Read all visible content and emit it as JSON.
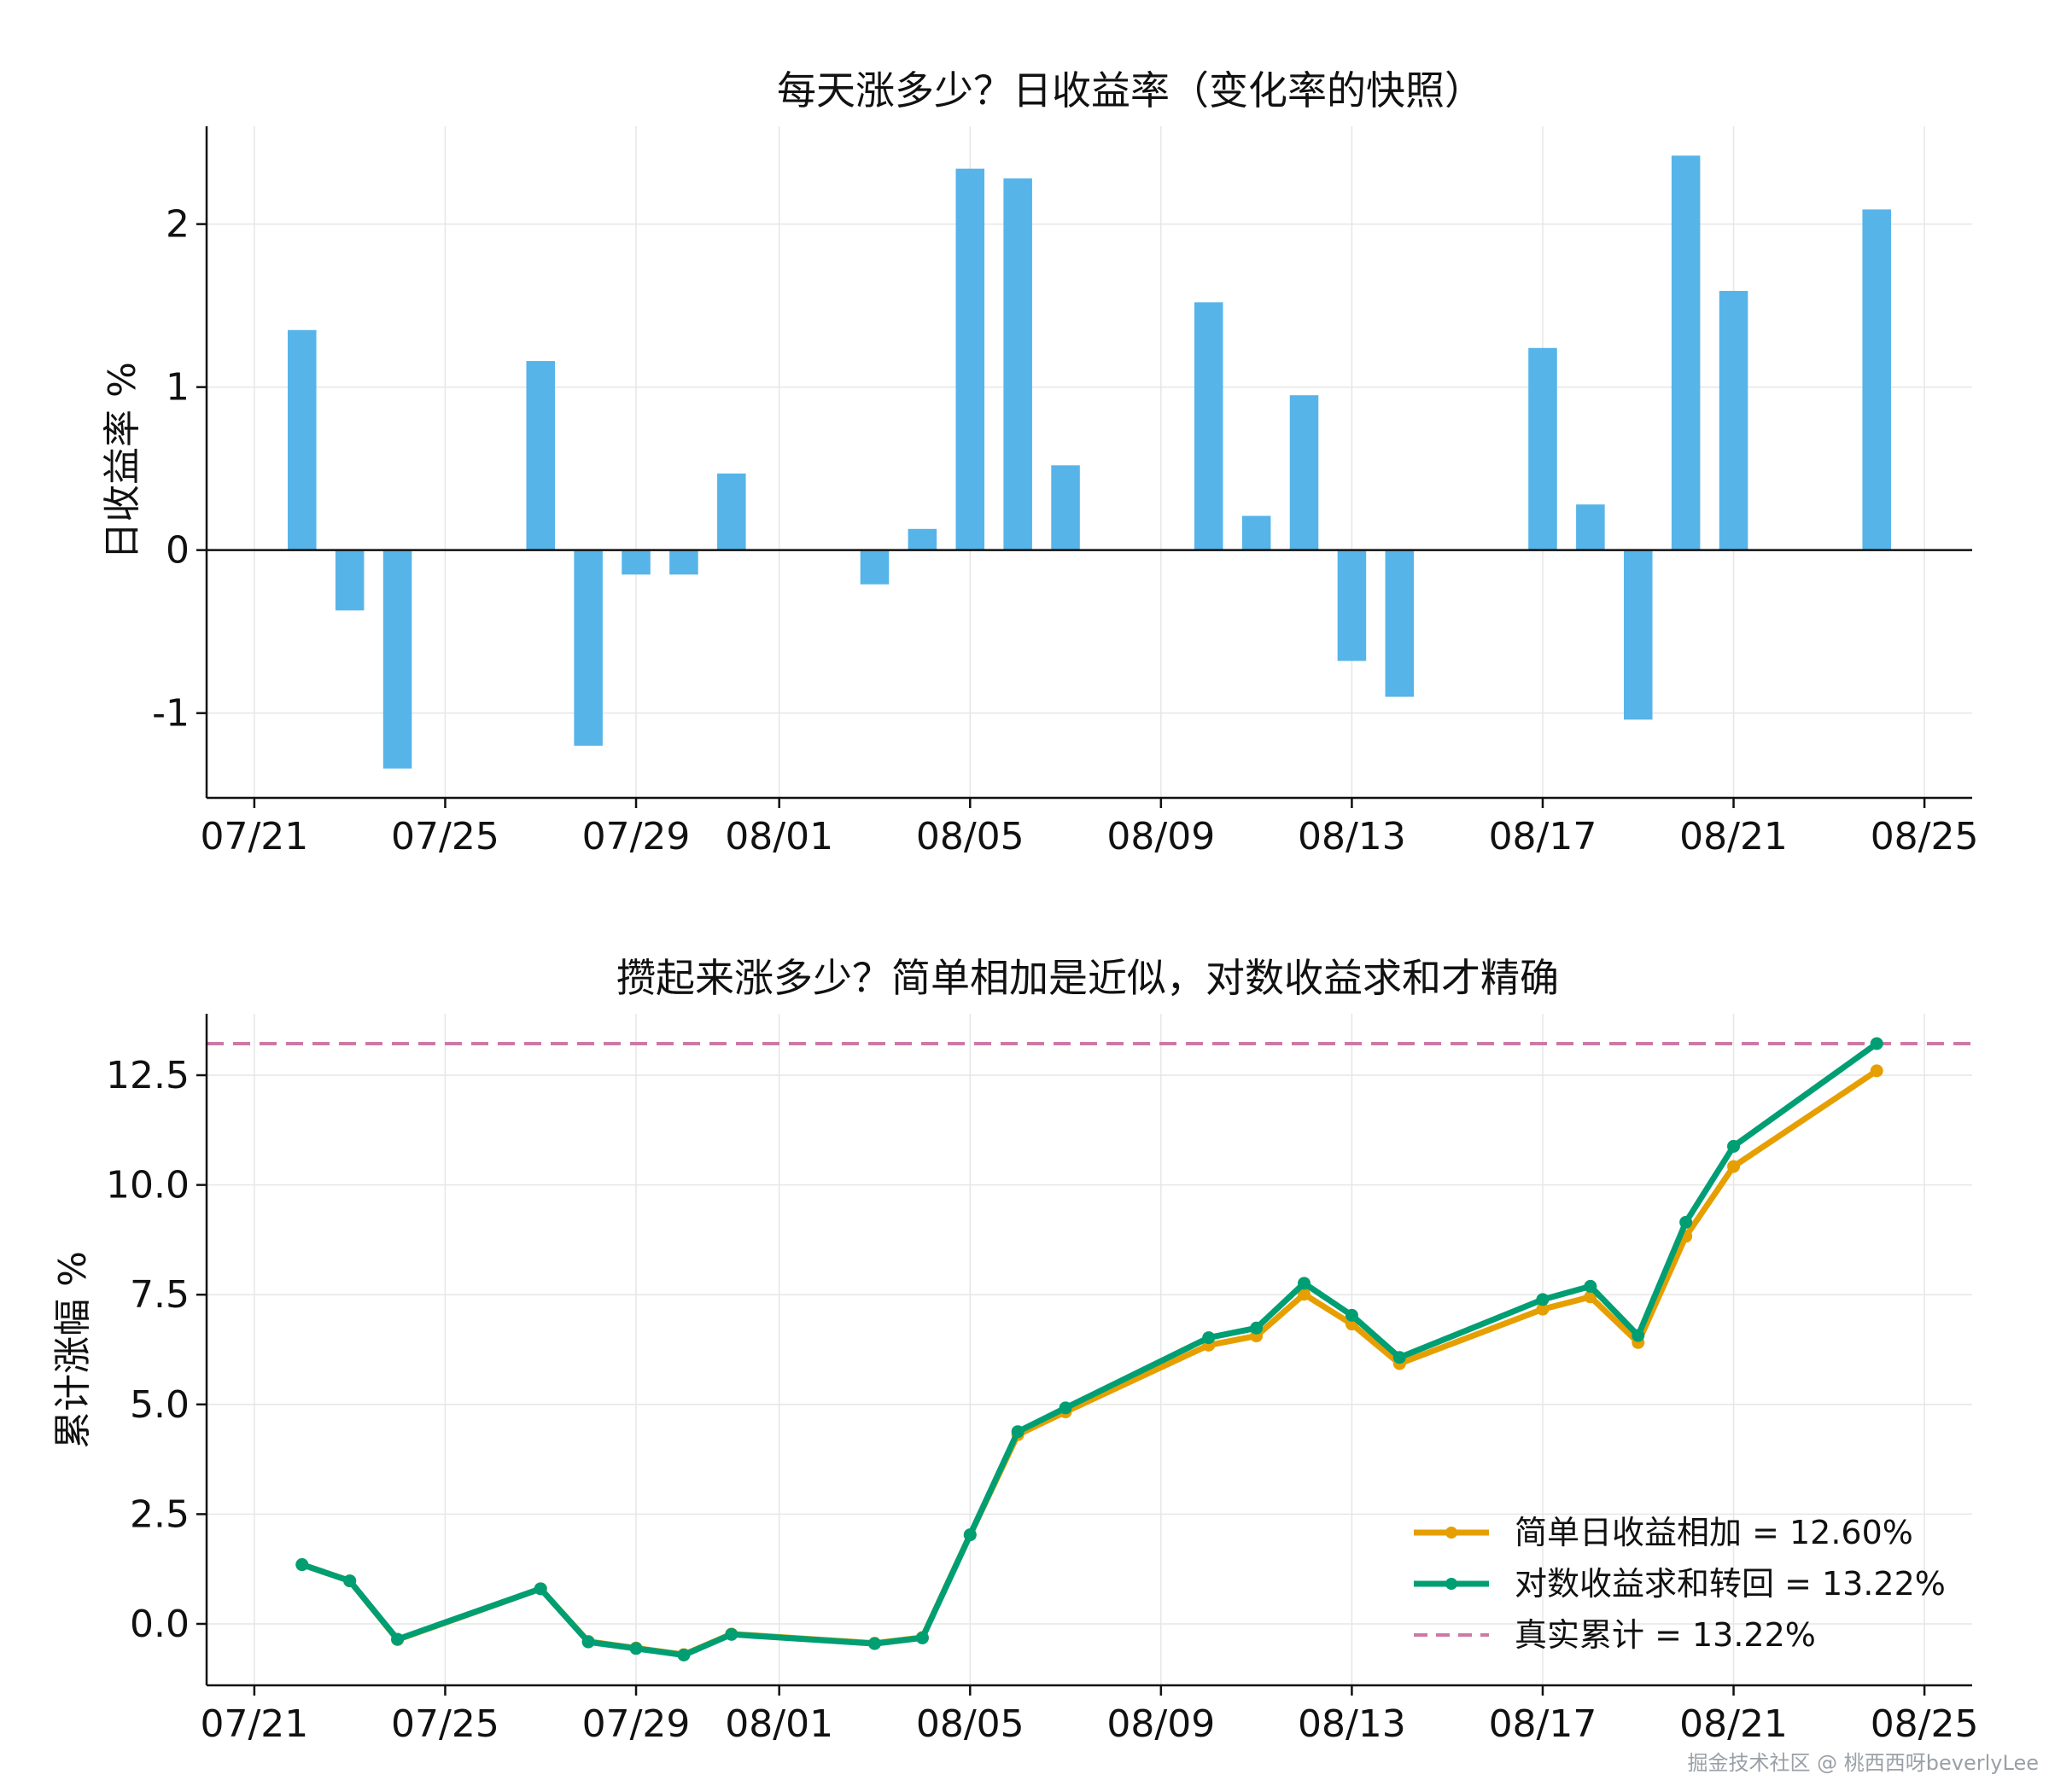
{
  "watermark": "掘金技术社区 @ 桃西西呀beverlyLee",
  "chart_data": [
    {
      "type": "bar",
      "title": "每天涨多少？日收益率（变化率的快照）",
      "xlabel": "",
      "ylabel": "日收益率 %",
      "ylim": [
        -1.52,
        2.6
      ],
      "xlim": [
        "2025-07-20",
        "2025-08-26"
      ],
      "x_ticks": [
        "07/21",
        "07/25",
        "07/29",
        "08/01",
        "08/05",
        "08/09",
        "08/13",
        "08/17",
        "08/21",
        "08/25"
      ],
      "x_tick_dates": [
        "2025-07-21",
        "2025-07-25",
        "2025-07-29",
        "2025-08-01",
        "2025-08-05",
        "2025-08-09",
        "2025-08-13",
        "2025-08-17",
        "2025-08-21",
        "2025-08-25"
      ],
      "y_ticks": [
        -1,
        0,
        1,
        2
      ],
      "y_tick_labels": [
        "-1",
        "0",
        "1",
        "2"
      ],
      "grid": true,
      "bar_color": "#56b4e9",
      "dates": [
        "2025-07-22",
        "2025-07-23",
        "2025-07-24",
        "2025-07-27",
        "2025-07-28",
        "2025-07-29",
        "2025-07-30",
        "2025-07-31",
        "2025-08-03",
        "2025-08-04",
        "2025-08-05",
        "2025-08-06",
        "2025-08-07",
        "2025-08-10",
        "2025-08-11",
        "2025-08-12",
        "2025-08-13",
        "2025-08-14",
        "2025-08-17",
        "2025-08-18",
        "2025-08-19",
        "2025-08-20",
        "2025-08-21",
        "2025-08-24"
      ],
      "values": [
        1.35,
        -0.37,
        -1.34,
        1.16,
        -1.2,
        -0.15,
        -0.15,
        0.47,
        -0.21,
        0.13,
        2.34,
        2.28,
        0.52,
        1.52,
        0.21,
        0.95,
        -0.68,
        -0.9,
        1.24,
        0.28,
        -1.04,
        2.42,
        1.59,
        2.09
      ]
    },
    {
      "type": "line",
      "title": "攒起来涨多少？简单相加是近似，对数收益求和才精确",
      "xlabel": "",
      "ylabel": "累计涨幅 %",
      "ylim": [
        -1.4,
        13.9
      ],
      "xlim": [
        "2025-07-20",
        "2025-08-26"
      ],
      "x_ticks": [
        "07/21",
        "07/25",
        "07/29",
        "08/01",
        "08/05",
        "08/09",
        "08/13",
        "08/17",
        "08/21",
        "08/25"
      ],
      "x_tick_dates": [
        "2025-07-21",
        "2025-07-25",
        "2025-07-29",
        "2025-08-01",
        "2025-08-05",
        "2025-08-09",
        "2025-08-13",
        "2025-08-17",
        "2025-08-21",
        "2025-08-25"
      ],
      "y_ticks": [
        0,
        2.5,
        5,
        7.5,
        10,
        12.5
      ],
      "y_tick_labels": [
        "0.0",
        "2.5",
        "5.0",
        "7.5",
        "10.0",
        "12.5"
      ],
      "grid": true,
      "legend_position": "lower-right",
      "x": [
        "2025-07-22",
        "2025-07-23",
        "2025-07-24",
        "2025-07-27",
        "2025-07-28",
        "2025-07-29",
        "2025-07-30",
        "2025-07-31",
        "2025-08-03",
        "2025-08-04",
        "2025-08-05",
        "2025-08-06",
        "2025-08-07",
        "2025-08-10",
        "2025-08-11",
        "2025-08-12",
        "2025-08-13",
        "2025-08-14",
        "2025-08-17",
        "2025-08-18",
        "2025-08-19",
        "2025-08-20",
        "2025-08-21",
        "2025-08-24"
      ],
      "series": [
        {
          "name": "简单日收益相加 = 12.60%",
          "color": "#e69f00",
          "values": [
            1.35,
            0.98,
            -0.36,
            0.8,
            -0.4,
            -0.55,
            -0.7,
            -0.23,
            -0.44,
            -0.31,
            2.03,
            4.31,
            4.83,
            6.35,
            6.56,
            7.51,
            6.83,
            5.93,
            7.17,
            7.45,
            6.41,
            8.83,
            10.42,
            12.6
          ]
        },
        {
          "name": "对数收益求和转回 = 13.22%",
          "color": "#009e73",
          "values": [
            1.35,
            0.98,
            -0.35,
            0.8,
            -0.41,
            -0.56,
            -0.71,
            -0.24,
            -0.45,
            -0.32,
            2.03,
            4.38,
            4.92,
            6.52,
            6.74,
            7.76,
            7.03,
            6.07,
            7.39,
            7.69,
            6.57,
            9.15,
            10.88,
            13.22
          ]
        }
      ],
      "reference_line": {
        "name": "真实累计 = 13.22%",
        "value": 13.22,
        "color": "#cc79a7",
        "style": "dashed"
      }
    }
  ]
}
